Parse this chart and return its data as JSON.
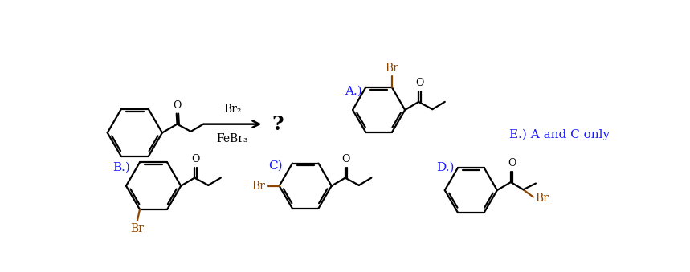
{
  "bg_color": "#ffffff",
  "bond_color": "#000000",
  "br_color": "#8B4500",
  "label_color": "#1a1aff",
  "reagent_color": "#000000",
  "reagents": [
    "Br₂",
    "FeBr₃"
  ],
  "question_mark": "?",
  "label_A": "A.)",
  "label_B": "B.)",
  "label_C": "C)",
  "label_D": "D.)",
  "label_E": "E.) A and C only",
  "fig_width": 8.59,
  "fig_height": 3.39,
  "dpi": 100
}
